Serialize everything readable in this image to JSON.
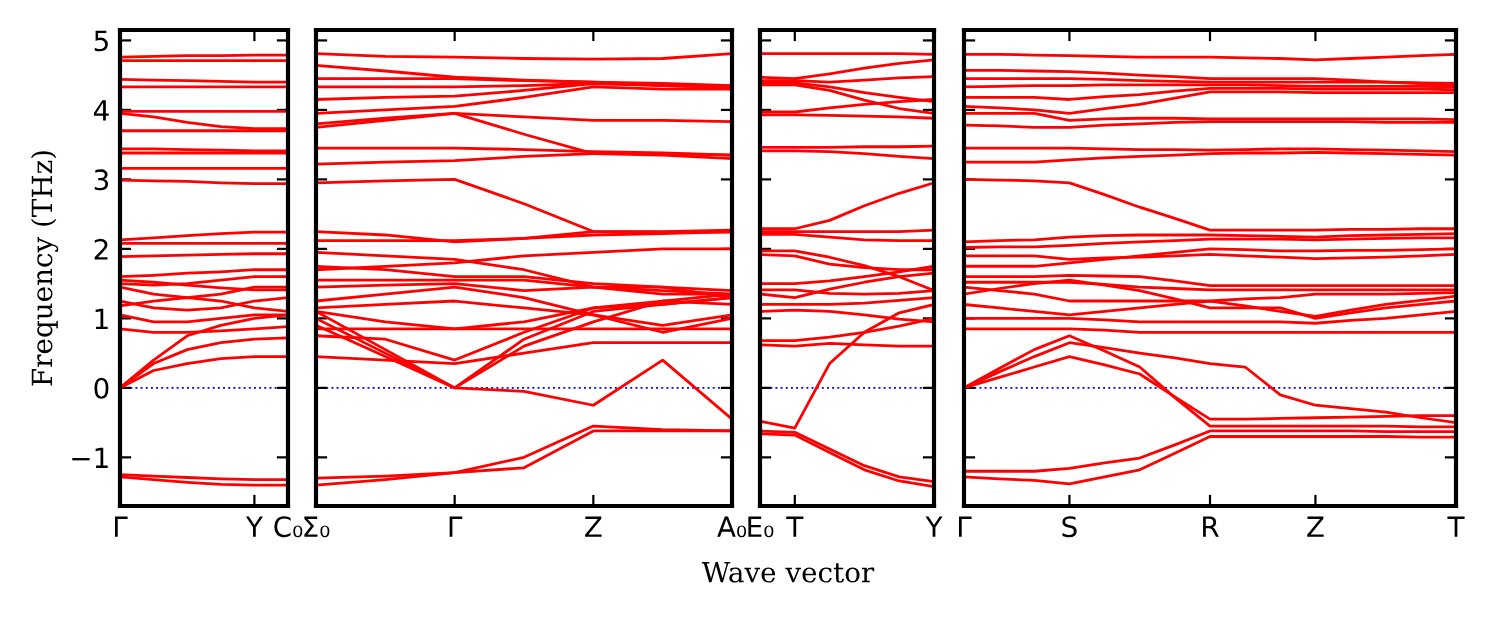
{
  "chart_data": [
    {
      "type": "line",
      "ylabel": "Frequency (THz)",
      "categories": [
        "Γ",
        null,
        null,
        null,
        "Y",
        "C₀"
      ],
      "ylim": [
        -1.7,
        5.15
      ],
      "yticks": [
        {
          "value": -1,
          "label": "−1"
        },
        0,
        1,
        2,
        3,
        4,
        5
      ],
      "ref_lines": [
        {
          "axis": "y",
          "value": 0,
          "color": "#0000ff",
          "line_style": "dotted"
        }
      ],
      "series": [
        {
          "color": "#ff0000",
          "values": [
            4.76,
            4.77,
            4.78,
            4.78,
            4.79,
            4.79
          ]
        },
        {
          "color": "#ff0000",
          "values": [
            4.71,
            4.71,
            4.71,
            4.71,
            4.71,
            4.71
          ]
        },
        {
          "color": "#ff0000",
          "values": [
            4.44,
            4.43,
            4.42,
            4.41,
            4.4,
            4.4
          ]
        },
        {
          "color": "#ff0000",
          "values": [
            4.33,
            4.33,
            4.33,
            4.33,
            4.33,
            4.33
          ]
        },
        {
          "color": "#ff0000",
          "values": [
            3.98,
            3.98,
            3.98,
            3.98,
            3.98,
            3.98
          ]
        },
        {
          "color": "#ff0000",
          "values": [
            3.95,
            3.9,
            3.82,
            3.76,
            3.73,
            3.73
          ]
        },
        {
          "color": "#ff0000",
          "values": [
            3.7,
            3.7,
            3.7,
            3.7,
            3.7,
            3.7
          ]
        },
        {
          "color": "#ff0000",
          "values": [
            3.44,
            3.44,
            3.43,
            3.42,
            3.41,
            3.41
          ]
        },
        {
          "color": "#ff0000",
          "values": [
            3.38,
            3.38,
            3.38,
            3.38,
            3.38,
            3.38
          ]
        },
        {
          "color": "#ff0000",
          "values": [
            3.16,
            3.16,
            3.16,
            3.16,
            3.16,
            3.16
          ]
        },
        {
          "color": "#ff0000",
          "values": [
            2.99,
            2.98,
            2.97,
            2.95,
            2.94,
            2.94
          ]
        },
        {
          "color": "#ff0000",
          "values": [
            2.13,
            2.16,
            2.19,
            2.22,
            2.24,
            2.24
          ]
        },
        {
          "color": "#ff0000",
          "values": [
            2.08,
            2.08,
            2.08,
            2.08,
            2.08,
            2.08
          ]
        },
        {
          "color": "#ff0000",
          "values": [
            1.89,
            1.9,
            1.91,
            1.92,
            1.93,
            1.93
          ]
        },
        {
          "color": "#ff0000",
          "values": [
            1.6,
            1.62,
            1.65,
            1.67,
            1.7,
            1.7
          ]
        },
        {
          "color": "#ff0000",
          "values": [
            1.55,
            1.52,
            1.48,
            1.44,
            1.41,
            1.41
          ]
        },
        {
          "color": "#ff0000",
          "values": [
            1.5,
            1.48,
            1.5,
            1.55,
            1.6,
            1.6
          ]
        },
        {
          "color": "#ff0000",
          "values": [
            1.45,
            1.35,
            1.3,
            1.35,
            1.45,
            1.45
          ]
        },
        {
          "color": "#ff0000",
          "values": [
            1.25,
            1.15,
            1.12,
            1.15,
            1.25,
            1.3
          ]
        },
        {
          "color": "#ff0000",
          "values": [
            1.18,
            1.25,
            1.3,
            1.25,
            1.15,
            1.1
          ]
        },
        {
          "color": "#ff0000",
          "values": [
            1.05,
            0.95,
            0.95,
            1.0,
            1.05,
            1.05
          ]
        },
        {
          "color": "#ff0000",
          "values": [
            0.85,
            0.8,
            0.8,
            0.82,
            0.85,
            0.88
          ]
        },
        {
          "color": "#ff0000",
          "values": [
            0,
            0.4,
            0.75,
            0.9,
            1.0,
            1.05
          ]
        },
        {
          "color": "#ff0000",
          "values": [
            0,
            0.35,
            0.55,
            0.65,
            0.7,
            0.72
          ]
        },
        {
          "color": "#ff0000",
          "values": [
            0,
            0.25,
            0.35,
            0.42,
            0.45,
            0.45
          ]
        },
        {
          "color": "#ff0000",
          "values": [
            -1.25,
            -1.27,
            -1.29,
            -1.31,
            -1.32,
            -1.32
          ]
        },
        {
          "color": "#ff0000",
          "values": [
            -1.28,
            -1.32,
            -1.36,
            -1.39,
            -1.4,
            -1.4
          ]
        }
      ]
    },
    {
      "type": "line",
      "categories": [
        "Σ₀",
        null,
        "Γ",
        null,
        "Z",
        null,
        "A₀"
      ],
      "ylim": [
        -1.7,
        5.15
      ],
      "yticks": [
        {
          "value": -1,
          "label": null
        },
        {
          "value": 0,
          "label": null
        },
        {
          "value": 1,
          "label": null
        },
        {
          "value": 2,
          "label": null
        },
        {
          "value": 3,
          "label": null
        },
        {
          "value": 4,
          "label": null
        },
        {
          "value": 5,
          "label": null
        }
      ],
      "tick_labels": "x",
      "ref_lines": [
        {
          "axis": "y",
          "value": 0,
          "color": "#0000ff",
          "line_style": "dotted"
        }
      ],
      "series": [
        {
          "color": "#ff0000",
          "values": [
            4.81,
            4.77,
            4.76,
            4.74,
            4.73,
            4.74,
            4.81
          ]
        },
        {
          "color": "#ff0000",
          "values": [
            4.64,
            4.56,
            4.47,
            4.43,
            4.4,
            4.38,
            4.35
          ]
        },
        {
          "color": "#ff0000",
          "values": [
            4.45,
            4.45,
            4.45,
            4.42,
            4.4,
            4.35,
            4.32
          ]
        },
        {
          "color": "#ff0000",
          "values": [
            4.33,
            4.33,
            4.33,
            4.35,
            4.38,
            4.35,
            4.33
          ]
        },
        {
          "color": "#ff0000",
          "values": [
            4.15,
            4.18,
            4.2,
            4.28,
            4.38,
            4.36,
            4.32
          ]
        },
        {
          "color": "#ff0000",
          "values": [
            3.95,
            4.0,
            4.05,
            4.18,
            4.33,
            4.3,
            4.3
          ]
        },
        {
          "color": "#ff0000",
          "values": [
            3.8,
            3.88,
            3.95,
            3.9,
            3.85,
            3.85,
            3.83
          ]
        },
        {
          "color": "#ff0000",
          "values": [
            3.75,
            3.85,
            3.95,
            3.65,
            3.37,
            3.35,
            3.3
          ]
        },
        {
          "color": "#ff0000",
          "values": [
            3.45,
            3.45,
            3.45,
            3.43,
            3.4,
            3.38,
            3.35
          ]
        },
        {
          "color": "#ff0000",
          "values": [
            3.22,
            3.25,
            3.27,
            3.33,
            3.37,
            3.37,
            3.35
          ]
        },
        {
          "color": "#ff0000",
          "values": [
            2.95,
            2.98,
            3.0,
            2.65,
            2.25,
            2.24,
            2.24
          ]
        },
        {
          "color": "#ff0000",
          "values": [
            2.25,
            2.2,
            2.1,
            2.15,
            2.25,
            2.25,
            2.27
          ]
        },
        {
          "color": "#ff0000",
          "values": [
            2.12,
            2.12,
            2.12,
            2.15,
            2.2,
            2.22,
            2.25
          ]
        },
        {
          "color": "#ff0000",
          "values": [
            1.95,
            1.9,
            1.85,
            1.7,
            1.45,
            1.4,
            1.35
          ]
        },
        {
          "color": "#ff0000",
          "values": [
            1.7,
            1.75,
            1.8,
            1.9,
            1.95,
            2.0,
            2.0
          ]
        },
        {
          "color": "#ff0000",
          "values": [
            1.75,
            1.7,
            1.6,
            1.6,
            1.5,
            1.45,
            1.3
          ]
        },
        {
          "color": "#ff0000",
          "values": [
            1.55,
            1.55,
            1.55,
            1.55,
            1.45,
            1.35,
            1.35
          ]
        },
        {
          "color": "#ff0000",
          "values": [
            1.45,
            1.48,
            1.5,
            1.4,
            1.45,
            1.45,
            1.4
          ]
        },
        {
          "color": "#ff0000",
          "values": [
            1.25,
            1.35,
            1.45,
            1.3,
            1.05,
            0.9,
            1.05
          ]
        },
        {
          "color": "#ff0000",
          "values": [
            1.15,
            1.2,
            1.25,
            1.15,
            1.05,
            0.8,
            1.0
          ]
        },
        {
          "color": "#ff0000",
          "values": [
            0.85,
            0.85,
            0.85,
            0.85,
            0.85,
            0.85,
            0.85
          ]
        },
        {
          "color": "#ff0000",
          "values": [
            1.1,
            0.95,
            0.85,
            0.95,
            1.15,
            1.2,
            1.3
          ]
        },
        {
          "color": "#ff0000",
          "values": [
            0.75,
            0.7,
            0.4,
            0.8,
            1.15,
            1.25,
            1.2
          ]
        },
        {
          "color": "#ff0000",
          "values": [
            0.45,
            0.4,
            0.35,
            0.5,
            0.65,
            0.65,
            0.65
          ]
        },
        {
          "color": "#ff0000",
          "values": [
            1.1,
            0.55,
            0,
            0.6,
            0.95,
            1.25,
            1.35
          ]
        },
        {
          "color": "#ff0000",
          "values": [
            1.0,
            0.5,
            0,
            -0.05,
            -0.25,
            0.4,
            -0.45
          ]
        },
        {
          "color": "#ff0000",
          "values": [
            0.9,
            0.45,
            0,
            0.7,
            1.1,
            1.2,
            1.3
          ]
        },
        {
          "color": "#ff0000",
          "values": [
            -1.3,
            -1.27,
            -1.22,
            -1.0,
            -0.55,
            -0.6,
            -0.62
          ]
        },
        {
          "color": "#ff0000",
          "values": [
            -1.4,
            -1.32,
            -1.22,
            -1.15,
            -0.62,
            -0.62,
            -0.62
          ]
        }
      ]
    },
    {
      "type": "line",
      "xlabel": "Wave vector",
      "categories": [
        "E₀",
        "T",
        null,
        null,
        null,
        "Y"
      ],
      "ylim": [
        -1.7,
        5.15
      ],
      "yticks": [
        {
          "value": -1,
          "label": null
        },
        {
          "value": 0,
          "label": null
        },
        {
          "value": 1,
          "label": null
        },
        {
          "value": 2,
          "label": null
        },
        {
          "value": 3,
          "label": null
        },
        {
          "value": 4,
          "label": null
        },
        {
          "value": 5,
          "label": null
        }
      ],
      "tick_labels": "x",
      "ref_lines": [
        {
          "axis": "y",
          "value": 0,
          "color": "#0000ff",
          "line_style": "dotted"
        }
      ],
      "series": [
        {
          "color": "#ff0000",
          "values": [
            4.81,
            4.81,
            4.81,
            4.81,
            4.81,
            4.8
          ]
        },
        {
          "color": "#ff0000",
          "values": [
            4.47,
            4.45,
            4.52,
            4.6,
            4.67,
            4.72
          ]
        },
        {
          "color": "#ff0000",
          "values": [
            4.42,
            4.42,
            4.4,
            4.43,
            4.46,
            4.48
          ]
        },
        {
          "color": "#ff0000",
          "values": [
            4.39,
            4.39,
            4.33,
            4.25,
            4.18,
            4.12
          ]
        },
        {
          "color": "#ff0000",
          "values": [
            4.36,
            4.36,
            4.28,
            4.14,
            4.02,
            3.95
          ]
        },
        {
          "color": "#ff0000",
          "values": [
            3.93,
            3.93,
            3.92,
            3.91,
            3.9,
            3.88
          ]
        },
        {
          "color": "#ff0000",
          "values": [
            3.97,
            3.97,
            4.03,
            4.08,
            4.12,
            4.15
          ]
        },
        {
          "color": "#ff0000",
          "values": [
            3.46,
            3.46,
            3.46,
            3.47,
            3.47,
            3.48
          ]
        },
        {
          "color": "#ff0000",
          "values": [
            3.41,
            3.41,
            3.4,
            3.37,
            3.33,
            3.3
          ]
        },
        {
          "color": "#ff0000",
          "values": [
            2.29,
            2.29,
            2.41,
            2.62,
            2.8,
            2.95
          ]
        },
        {
          "color": "#ff0000",
          "values": [
            2.25,
            2.25,
            2.25,
            2.25,
            2.25,
            2.27
          ]
        },
        {
          "color": "#ff0000",
          "values": [
            2.21,
            2.21,
            2.17,
            2.13,
            2.12,
            2.12
          ]
        },
        {
          "color": "#ff0000",
          "values": [
            1.97,
            1.97,
            1.88,
            1.76,
            1.6,
            1.4
          ]
        },
        {
          "color": "#ff0000",
          "values": [
            1.92,
            1.9,
            1.78,
            1.73,
            1.7,
            1.7
          ]
        },
        {
          "color": "#ff0000",
          "values": [
            1.5,
            1.5,
            1.54,
            1.6,
            1.67,
            1.75
          ]
        },
        {
          "color": "#ff0000",
          "values": [
            1.41,
            1.41,
            1.36,
            1.35,
            1.36,
            1.4
          ]
        },
        {
          "color": "#ff0000",
          "values": [
            1.35,
            1.3,
            1.42,
            1.52,
            1.6,
            1.65
          ]
        },
        {
          "color": "#ff0000",
          "values": [
            1.2,
            1.2,
            1.2,
            1.22,
            1.26,
            1.3
          ]
        },
        {
          "color": "#ff0000",
          "values": [
            1.1,
            1.12,
            1.1,
            1.05,
            0.99,
            0.95
          ]
        },
        {
          "color": "#ff0000",
          "values": [
            0.68,
            0.68,
            0.73,
            0.8,
            0.89,
            1.0
          ]
        },
        {
          "color": "#ff0000",
          "values": [
            0.62,
            0.6,
            0.64,
            0.62,
            0.6,
            0.6
          ]
        },
        {
          "color": "#ff0000",
          "values": [
            -0.48,
            -0.58,
            0.35,
            0.8,
            1.08,
            1.2
          ]
        },
        {
          "color": "#ff0000",
          "values": [
            -0.62,
            -0.64,
            -0.88,
            -1.12,
            -1.28,
            -1.35
          ]
        },
        {
          "color": "#ff0000",
          "values": [
            -0.66,
            -0.68,
            -0.93,
            -1.18,
            -1.34,
            -1.42
          ]
        }
      ]
    },
    {
      "type": "line",
      "categories": [
        "Γ",
        null,
        null,
        "S",
        null,
        null,
        null,
        "R",
        null,
        null,
        "Z",
        null,
        null,
        null,
        "T"
      ],
      "ylim": [
        -1.7,
        5.15
      ],
      "yticks": [
        {
          "value": -1,
          "label": null
        },
        {
          "value": 0,
          "label": null
        },
        {
          "value": 1,
          "label": null
        },
        {
          "value": 2,
          "label": null
        },
        {
          "value": 3,
          "label": null
        },
        {
          "value": 4,
          "label": null
        },
        {
          "value": 5,
          "label": null
        }
      ],
      "tick_labels": "x",
      "ref_lines": [
        {
          "axis": "y",
          "value": 0,
          "color": "#0000ff",
          "line_style": "dotted"
        }
      ],
      "series": [
        {
          "color": "#ff0000",
          "values": [
            4.8,
            4.8,
            4.79,
            4.78,
            4.77,
            4.76,
            4.76,
            4.76,
            4.75,
            4.74,
            4.72,
            4.74,
            4.76,
            4.78,
            4.8
          ]
        },
        {
          "color": "#ff0000",
          "values": [
            4.57,
            4.57,
            4.56,
            4.55,
            4.53,
            4.5,
            4.48,
            4.45,
            4.45,
            4.45,
            4.45,
            4.43,
            4.4,
            4.38,
            4.35
          ]
        },
        {
          "color": "#ff0000",
          "values": [
            4.45,
            4.45,
            4.45,
            4.45,
            4.44,
            4.42,
            4.41,
            4.4,
            4.4,
            4.4,
            4.4,
            4.4,
            4.4,
            4.39,
            4.38
          ]
        },
        {
          "color": "#ff0000",
          "values": [
            4.33,
            4.34,
            4.35,
            4.35,
            4.36,
            4.36,
            4.36,
            4.36,
            4.36,
            4.35,
            4.34,
            4.34,
            4.34,
            4.34,
            4.33
          ]
        },
        {
          "color": "#ff0000",
          "values": [
            4.18,
            4.18,
            4.18,
            4.15,
            4.19,
            4.22,
            4.27,
            4.31,
            4.31,
            4.31,
            4.3,
            4.3,
            4.3,
            4.3,
            4.29
          ]
        },
        {
          "color": "#ff0000",
          "values": [
            4.05,
            4.03,
            4.0,
            3.95,
            4.02,
            4.08,
            4.17,
            4.26,
            4.26,
            4.26,
            4.25,
            4.25,
            4.25,
            4.25,
            4.25
          ]
        },
        {
          "color": "#ff0000",
          "values": [
            3.95,
            3.95,
            3.95,
            3.85,
            3.87,
            3.88,
            3.88,
            3.87,
            3.87,
            3.87,
            3.87,
            3.87,
            3.87,
            3.87,
            3.86
          ]
        },
        {
          "color": "#ff0000",
          "values": [
            3.78,
            3.77,
            3.75,
            3.75,
            3.78,
            3.8,
            3.82,
            3.83,
            3.83,
            3.83,
            3.83,
            3.83,
            3.82,
            3.82,
            3.82
          ]
        },
        {
          "color": "#ff0000",
          "values": [
            3.45,
            3.45,
            3.45,
            3.45,
            3.44,
            3.43,
            3.43,
            3.42,
            3.43,
            3.44,
            3.44,
            3.43,
            3.42,
            3.41,
            3.4
          ]
        },
        {
          "color": "#ff0000",
          "values": [
            3.25,
            3.25,
            3.25,
            3.28,
            3.31,
            3.33,
            3.35,
            3.37,
            3.38,
            3.38,
            3.39,
            3.38,
            3.37,
            3.36,
            3.35
          ]
        },
        {
          "color": "#ff0000",
          "values": [
            3.0,
            2.99,
            2.98,
            2.95,
            2.78,
            2.6,
            2.44,
            2.27,
            2.27,
            2.27,
            2.27,
            2.28,
            2.28,
            2.29,
            2.29
          ]
        },
        {
          "color": "#ff0000",
          "values": [
            2.1,
            2.12,
            2.13,
            2.17,
            2.19,
            2.2,
            2.2,
            2.2,
            2.19,
            2.18,
            2.17,
            2.19,
            2.2,
            2.21,
            2.22
          ]
        },
        {
          "color": "#ff0000",
          "values": [
            2.02,
            2.03,
            2.03,
            2.05,
            2.08,
            2.1,
            2.12,
            2.14,
            2.14,
            2.14,
            2.13,
            2.14,
            2.15,
            2.16,
            2.16
          ]
        },
        {
          "color": "#ff0000",
          "values": [
            1.9,
            1.9,
            1.9,
            1.85,
            1.87,
            1.88,
            1.9,
            1.92,
            1.9,
            1.88,
            1.86,
            1.87,
            1.88,
            1.9,
            1.92
          ]
        },
        {
          "color": "#ff0000",
          "values": [
            1.75,
            1.75,
            1.75,
            1.8,
            1.85,
            1.9,
            1.95,
            2.0,
            1.99,
            1.97,
            1.97,
            1.98,
            1.98,
            1.99,
            2.0
          ]
        },
        {
          "color": "#ff0000",
          "values": [
            1.6,
            1.6,
            1.6,
            1.62,
            1.61,
            1.6,
            1.54,
            1.47,
            1.47,
            1.47,
            1.47,
            1.47,
            1.47,
            1.47,
            1.47
          ]
        },
        {
          "color": "#ff0000",
          "values": [
            1.52,
            1.52,
            1.52,
            1.52,
            1.49,
            1.45,
            1.43,
            1.41,
            1.41,
            1.41,
            1.41,
            1.41,
            1.41,
            1.41,
            1.41
          ]
        },
        {
          "color": "#ff0000",
          "values": [
            1.45,
            1.4,
            1.35,
            1.25,
            1.25,
            1.25,
            1.25,
            1.25,
            1.28,
            1.3,
            1.35,
            1.35,
            1.35,
            1.36,
            1.37
          ]
        },
        {
          "color": "#ff0000",
          "values": [
            1.35,
            1.43,
            1.5,
            1.55,
            1.48,
            1.4,
            1.28,
            1.15,
            1.15,
            1.15,
            1.0,
            1.08,
            1.15,
            1.2,
            1.25
          ]
        },
        {
          "color": "#ff0000",
          "values": [
            1.2,
            1.15,
            1.1,
            1.05,
            1.1,
            1.15,
            1.2,
            1.25,
            1.18,
            1.1,
            1.03,
            1.12,
            1.2,
            1.26,
            1.32
          ]
        },
        {
          "color": "#ff0000",
          "values": [
            1.0,
            1.0,
            1.0,
            1.0,
            0.98,
            0.95,
            0.95,
            0.95,
            0.95,
            0.95,
            0.93,
            0.97,
            1.0,
            1.05,
            1.1
          ]
        },
        {
          "color": "#ff0000",
          "values": [
            0.85,
            0.85,
            0.85,
            0.85,
            0.83,
            0.8,
            0.8,
            0.8,
            0.8,
            0.8,
            0.8,
            0.8,
            0.8,
            0.8,
            0.8
          ]
        },
        {
          "color": "#ff0000",
          "values": [
            0,
            0.28,
            0.55,
            0.75,
            0.53,
            0.3,
            -0.14,
            -0.55,
            -0.55,
            -0.55,
            -0.55,
            -0.55,
            -0.55,
            -0.56,
            -0.56
          ]
        },
        {
          "color": "#ff0000",
          "values": [
            0,
            0.23,
            0.45,
            0.65,
            0.58,
            0.5,
            0.43,
            0.35,
            0.3,
            -0.1,
            -0.25,
            -0.3,
            -0.35,
            -0.43,
            -0.5
          ]
        },
        {
          "color": "#ff0000",
          "values": [
            0,
            0.15,
            0.3,
            0.45,
            0.33,
            0.2,
            -0.13,
            -0.45,
            -0.45,
            -0.44,
            -0.43,
            -0.42,
            -0.41,
            -0.4,
            -0.4
          ]
        },
        {
          "color": "#ff0000",
          "values": [
            -1.2,
            -1.2,
            -1.2,
            -1.16,
            -1.08,
            -1.01,
            -0.82,
            -0.62,
            -0.62,
            -0.62,
            -0.62,
            -0.62,
            -0.63,
            -0.63,
            -0.63
          ]
        },
        {
          "color": "#ff0000",
          "values": [
            -1.28,
            -1.31,
            -1.33,
            -1.38,
            -1.28,
            -1.18,
            -0.94,
            -0.7,
            -0.7,
            -0.7,
            -0.7,
            -0.7,
            -0.7,
            -0.71,
            -0.71
          ]
        }
      ]
    }
  ]
}
